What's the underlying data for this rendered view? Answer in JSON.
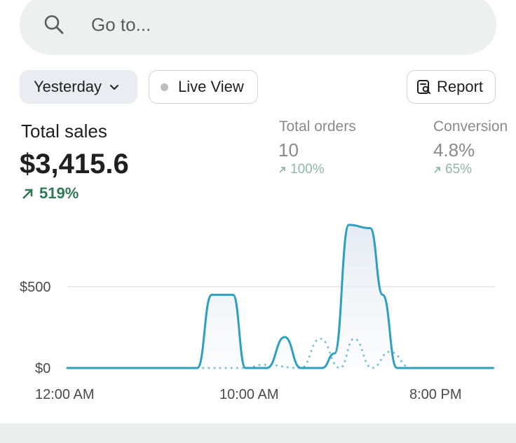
{
  "search": {
    "placeholder": "Go to...",
    "icon": "search-icon"
  },
  "toolbar": {
    "date_label": "Yesterday",
    "live_label": "Live View",
    "report_label": "Report"
  },
  "metrics": {
    "total_sales": {
      "title": "Total sales",
      "value": "$3,415.6",
      "change": "519%"
    },
    "total_orders": {
      "title": "Total orders",
      "value": "10",
      "change": "100%"
    },
    "conversion": {
      "title": "Conversion",
      "value": "4.8%",
      "change": "65%"
    }
  },
  "colors": {
    "accent": "#2f9fbf",
    "positive": "#2e7a54",
    "muted_positive": "#8fb8a4"
  },
  "chart_data": {
    "type": "line",
    "x_ticks": [
      "12:00 AM",
      "10:00 AM",
      "8:00 PM"
    ],
    "y_ticks": [
      "$0",
      "$500"
    ],
    "ylim": [
      0,
      1000
    ],
    "grid": true,
    "series": [
      {
        "style": "solid",
        "points": [
          [
            "0",
            0
          ],
          [
            "7.3",
            0
          ],
          [
            "8.1",
            450
          ],
          [
            "9.3",
            450
          ],
          [
            "10.0",
            0
          ],
          [
            "11.2",
            0
          ],
          [
            "12.2",
            190
          ],
          [
            "13.1",
            0
          ],
          [
            "14.3",
            0
          ],
          [
            "15.0",
            90
          ],
          [
            "15.8",
            880
          ],
          [
            "17.0",
            860
          ],
          [
            "17.7",
            450
          ],
          [
            "18.5",
            0
          ],
          [
            "23.9",
            0
          ]
        ]
      },
      {
        "style": "dotted",
        "points": [
          [
            "7.3",
            0
          ],
          [
            "10.0",
            0
          ],
          [
            "11.0",
            20
          ],
          [
            "13.1",
            0
          ],
          [
            "14.2",
            180
          ],
          [
            "15.3",
            0
          ],
          [
            "16.1",
            180
          ],
          [
            "17.1",
            0
          ],
          [
            "18.1",
            100
          ],
          [
            "19.3",
            0
          ]
        ]
      }
    ]
  }
}
